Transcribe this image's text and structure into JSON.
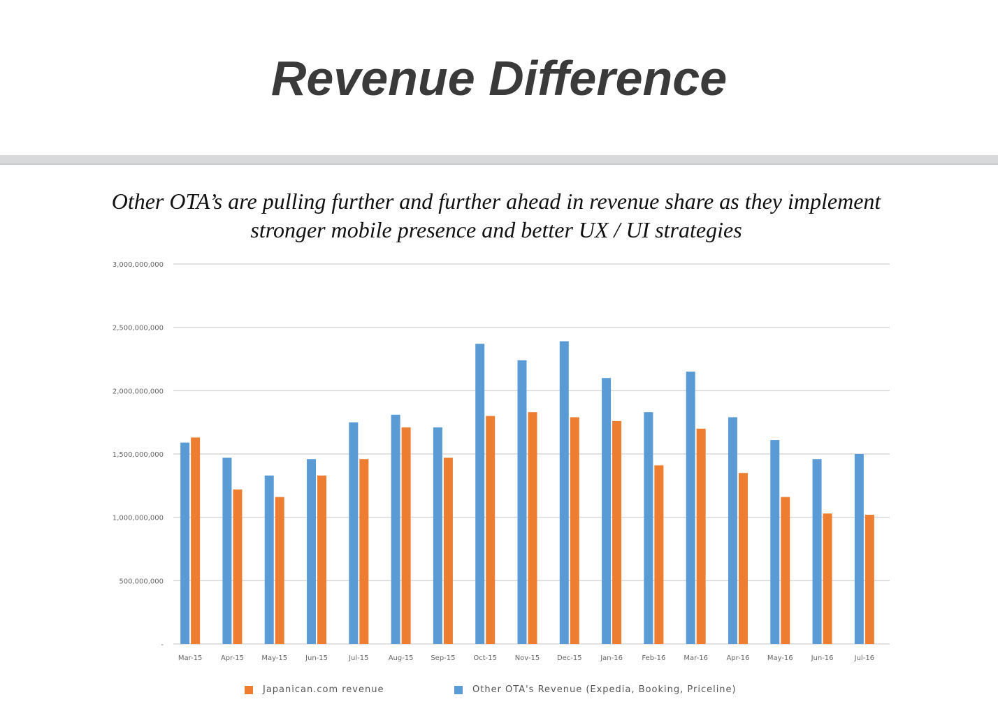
{
  "slide": {
    "title": "Revenue Difference",
    "subtitle_line1": "Other OTA’s are pulling further and further ahead in revenue share as they implement",
    "subtitle_line2": "stronger mobile presence and better UX / UI strategies"
  },
  "colors": {
    "japanican": "#ed7d31",
    "other_ota": "#5b9bd5",
    "grid": "#d9d9d9",
    "tick_text": "#666666"
  },
  "chart_data": {
    "type": "bar",
    "categories": [
      "Mar-15",
      "Apr-15",
      "May-15",
      "Jun-15",
      "Jul-15",
      "Aug-15",
      "Sep-15",
      "Oct-15",
      "Nov-15",
      "Dec-15",
      "Jan-16",
      "Feb-16",
      "Mar-16",
      "Apr-16",
      "May-16",
      "Jun-16",
      "Jul-16"
    ],
    "series": [
      {
        "name": "Other OTA's Revenue (Expedia, Booking, Priceline)",
        "color": "#5b9bd5",
        "values": [
          1590000000,
          1470000000,
          1330000000,
          1460000000,
          1750000000,
          1810000000,
          1710000000,
          2370000000,
          2240000000,
          2390000000,
          2100000000,
          1830000000,
          2150000000,
          1790000000,
          1610000000,
          1460000000,
          1500000000
        ]
      },
      {
        "name": "Japanican.com revenue",
        "color": "#ed7d31",
        "values": [
          1630000000,
          1220000000,
          1160000000,
          1330000000,
          1460000000,
          1710000000,
          1470000000,
          1800000000,
          1830000000,
          1790000000,
          1760000000,
          1410000000,
          1700000000,
          1350000000,
          1160000000,
          1030000000,
          1020000000
        ]
      }
    ],
    "ylim": [
      0,
      3000000000
    ],
    "yticks": [
      0,
      500000000,
      1000000000,
      1500000000,
      2000000000,
      2500000000,
      3000000000
    ],
    "ytick_labels": [
      "-",
      "500,000,000",
      "1,000,000,000",
      "1,500,000,000",
      "2,000,000,000",
      "2,500,000,000",
      "3,000,000,000"
    ],
    "grid": true,
    "legend": {
      "position": "bottom",
      "items": [
        {
          "label": "Japanican.com revenue",
          "color": "#ed7d31"
        },
        {
          "label": "Other OTA's Revenue (Expedia, Booking, Priceline)",
          "color": "#5b9bd5"
        }
      ]
    },
    "xlabel": "",
    "ylabel": ""
  }
}
